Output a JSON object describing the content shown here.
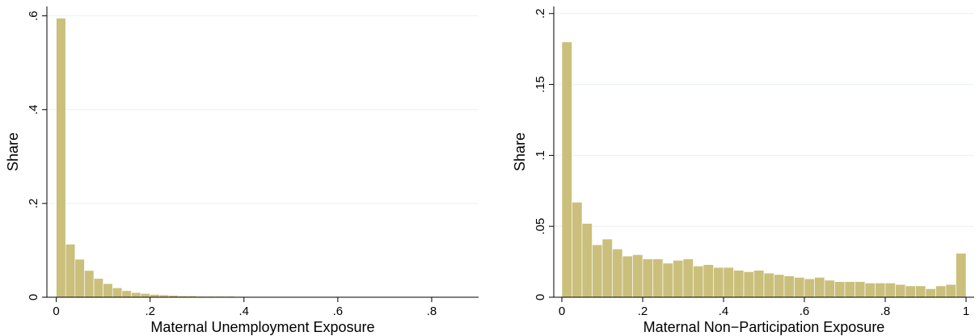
{
  "chart_data": [
    {
      "type": "bar",
      "xlabel": "Maternal Unemployment Exposure",
      "ylabel": "Share",
      "xlim": [
        -0.02,
        0.9
      ],
      "ylim": [
        0,
        0.62
      ],
      "x_ticks": [
        0,
        0.2,
        0.4,
        0.6,
        0.8
      ],
      "x_tick_labels": [
        "0",
        ".2",
        ".4",
        ".6",
        ".8"
      ],
      "y_ticks": [
        0,
        0.2,
        0.4,
        0.6
      ],
      "y_tick_labels": [
        "0",
        ".2",
        ".4",
        ".6"
      ],
      "grid": true,
      "bar_color": "#cbbf7c",
      "bin_width": 0.02,
      "bins_start": [
        0,
        0.02,
        0.04,
        0.06,
        0.08,
        0.1,
        0.12,
        0.14,
        0.16,
        0.18,
        0.2,
        0.22,
        0.24,
        0.26,
        0.28,
        0.3,
        0.32,
        0.34,
        0.36,
        0.38,
        0.4,
        0.42,
        0.44,
        0.46,
        0.48,
        0.5,
        0.52,
        0.54,
        0.56,
        0.58,
        0.6,
        0.62,
        0.64,
        0.66,
        0.68,
        0.7,
        0.72,
        0.74,
        0.76,
        0.78,
        0.8,
        0.82,
        0.84,
        0.86
      ],
      "values": [
        0.595,
        0.113,
        0.081,
        0.057,
        0.04,
        0.029,
        0.02,
        0.014,
        0.01,
        0.008,
        0.006,
        0.005,
        0.004,
        0.003,
        0.003,
        0.002,
        0.002,
        0.002,
        0.002,
        0.001,
        0.001,
        0.001,
        0.001,
        0.001,
        0.001,
        0.001,
        0.001,
        0.001,
        0.001,
        0.001,
        0.001,
        0.001,
        0.001,
        0.001,
        0.001,
        0.001,
        0.001,
        0.001,
        0.001,
        0.001,
        0.001,
        0.001,
        0.001,
        0.001
      ]
    },
    {
      "type": "bar",
      "xlabel": "Maternal Non−Participation Exposure",
      "ylabel": "Share",
      "xlim": [
        -0.02,
        1.02
      ],
      "ylim": [
        0,
        0.205
      ],
      "x_ticks": [
        0,
        0.2,
        0.4,
        0.6,
        0.8,
        1
      ],
      "x_tick_labels": [
        "0",
        ".2",
        ".4",
        ".6",
        ".8",
        "1"
      ],
      "y_ticks": [
        0,
        0.05,
        0.1,
        0.15,
        0.2
      ],
      "y_tick_labels": [
        "0",
        ".05",
        ".1",
        ".15",
        ".2"
      ],
      "grid": true,
      "bar_color": "#cbbf7c",
      "bin_width": 0.025,
      "bins_start": [
        0,
        0.025,
        0.05,
        0.075,
        0.1,
        0.125,
        0.15,
        0.175,
        0.2,
        0.225,
        0.25,
        0.275,
        0.3,
        0.325,
        0.35,
        0.375,
        0.4,
        0.425,
        0.45,
        0.475,
        0.5,
        0.525,
        0.55,
        0.575,
        0.6,
        0.625,
        0.65,
        0.675,
        0.7,
        0.725,
        0.75,
        0.775,
        0.8,
        0.825,
        0.85,
        0.875,
        0.9,
        0.925,
        0.95,
        0.975
      ],
      "values": [
        0.18,
        0.067,
        0.052,
        0.037,
        0.041,
        0.034,
        0.029,
        0.03,
        0.027,
        0.027,
        0.024,
        0.026,
        0.027,
        0.022,
        0.023,
        0.021,
        0.021,
        0.019,
        0.018,
        0.019,
        0.017,
        0.016,
        0.015,
        0.014,
        0.013,
        0.014,
        0.012,
        0.011,
        0.011,
        0.011,
        0.01,
        0.01,
        0.01,
        0.009,
        0.008,
        0.008,
        0.006,
        0.008,
        0.009,
        0.031
      ]
    }
  ]
}
